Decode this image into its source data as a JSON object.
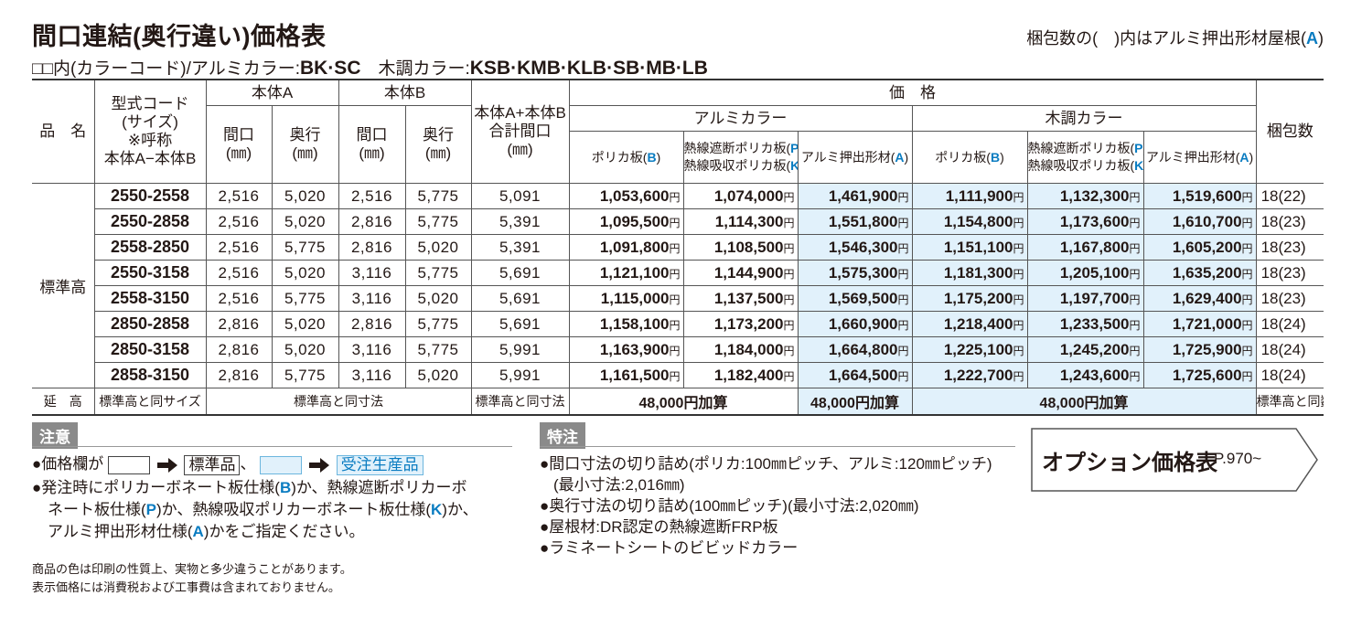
{
  "header": {
    "title": "間口連結(奥行違い)価格表",
    "pack_note": [
      "梱包数の(　)内はアルミ押出形材屋根(",
      "A",
      ")"
    ],
    "colors": [
      "□□内(カラーコード)/アルミカラー:",
      "BK·SC",
      "　木調カラー:",
      "KSB·KMB·KLB·SB·MB·LB"
    ]
  },
  "table": {
    "head": {
      "item": "品　名",
      "code": [
        "型式コード",
        "(サイズ)",
        "※呼称",
        "本体A−本体B"
      ],
      "body_a": {
        "label": "本体A",
        "width": [
          "間口",
          "(㎜)"
        ],
        "depth": [
          "奥行",
          "(㎜)"
        ]
      },
      "body_b": {
        "label": "本体B",
        "width": [
          "間口",
          "(㎜)"
        ],
        "depth": [
          "奥行",
          "(㎜)"
        ]
      },
      "total": [
        "本体A+本体B",
        "合計間口",
        "(㎜)"
      ],
      "price": "価　格",
      "alu": {
        "label": "アルミカラー",
        "cols": [
          [
            "ポリカ板(",
            "B",
            ")"
          ],
          [
            [
              "熱線遮断ポリカ板(",
              "P",
              ")"
            ],
            [
              "熱線吸収ポリカ板(",
              "K",
              ")"
            ]
          ],
          [
            "アルミ押出形材(",
            "A",
            ")"
          ]
        ]
      },
      "wood": {
        "label": "木調カラー",
        "cols": [
          [
            "ポリカ板(",
            "B",
            ")"
          ],
          [
            [
              "熱線遮断ポリカ板(",
              "P",
              ")"
            ],
            [
              "熱線吸収ポリカ板(",
              "K",
              ")"
            ]
          ],
          [
            "アルミ押出形材(",
            "A",
            ")"
          ]
        ]
      },
      "pack": "梱包数"
    },
    "group": "標準高",
    "rows": [
      [
        "2550-2558",
        "2,516",
        "5,020",
        "2,516",
        "5,775",
        "5,091",
        "1,053,600円",
        "1,074,000円",
        "1,461,900円",
        "1,111,900円",
        "1,132,300円",
        "1,519,600円",
        "18(22)"
      ],
      [
        "2550-2858",
        "2,516",
        "5,020",
        "2,816",
        "5,775",
        "5,391",
        "1,095,500円",
        "1,114,300円",
        "1,551,800円",
        "1,154,800円",
        "1,173,600円",
        "1,610,700円",
        "18(23)"
      ],
      [
        "2558-2850",
        "2,516",
        "5,775",
        "2,816",
        "5,020",
        "5,391",
        "1,091,800円",
        "1,108,500円",
        "1,546,300円",
        "1,151,100円",
        "1,167,800円",
        "1,605,200円",
        "18(23)"
      ],
      [
        "2550-3158",
        "2,516",
        "5,020",
        "3,116",
        "5,775",
        "5,691",
        "1,121,100円",
        "1,144,900円",
        "1,575,300円",
        "1,181,300円",
        "1,205,100円",
        "1,635,200円",
        "18(23)"
      ],
      [
        "2558-3150",
        "2,516",
        "5,775",
        "3,116",
        "5,020",
        "5,691",
        "1,115,000円",
        "1,137,500円",
        "1,569,500円",
        "1,175,200円",
        "1,197,700円",
        "1,629,400円",
        "18(23)"
      ],
      [
        "2850-2858",
        "2,816",
        "5,020",
        "2,816",
        "5,775",
        "5,691",
        "1,158,100円",
        "1,173,200円",
        "1,660,900円",
        "1,218,400円",
        "1,233,500円",
        "1,721,000円",
        "18(24)"
      ],
      [
        "2850-3158",
        "2,816",
        "5,020",
        "3,116",
        "5,775",
        "5,991",
        "1,163,900円",
        "1,184,000円",
        "1,664,800円",
        "1,225,100円",
        "1,245,200円",
        "1,725,900円",
        "18(24)"
      ],
      [
        "2858-3150",
        "2,816",
        "5,775",
        "3,116",
        "5,020",
        "5,991",
        "1,161,500円",
        "1,182,400円",
        "1,664,500円",
        "1,222,700円",
        "1,243,600円",
        "1,725,600円",
        "18(24)"
      ]
    ],
    "extra_row": {
      "label": "延　高",
      "code": "標準高と同サイズ",
      "dims": "標準高と同寸法",
      "total": "標準高と同寸法",
      "alu_bp": "48,000円加算",
      "alu_a": "48,000円加算",
      "wood": "48,000円加算",
      "pack": "標準高と同数"
    }
  },
  "caution": {
    "label": "注意",
    "legend": {
      "prefix": "●価格欄が",
      "standard": "標準品",
      "sep": "、",
      "order": "受注生産品"
    },
    "instruction": [
      [
        "●発注時にポリカーボネート板仕様(",
        "B",
        ")か、熱線遮断ポリカーボ"
      ],
      [
        "ネート板仕様(",
        "P",
        ")か、熱線吸収ポリカーボネート板仕様(",
        "K",
        ")か、"
      ],
      [
        "アルミ押出形材仕様(",
        "A",
        ")かをご指定ください。"
      ]
    ]
  },
  "fine_print": [
    "商品の色は印刷の性質上、実物と多少違うことがあります。",
    "表示価格には消費税および工事費は含まれておりません。"
  ],
  "special": {
    "label": "特注",
    "items": [
      "●間口寸法の切り詰め(ポリカ:100㎜ピッチ、アルミ:120㎜ピッチ)",
      "(最小寸法:2,016㎜)",
      "●奥行寸法の切り詰め(100㎜ピッチ)(最小寸法:2,020㎜)",
      "●屋根材:DR認定の熱線遮断FRP板",
      "●ラミネートシートのビビッドカラー"
    ]
  },
  "option": {
    "label": "オプション価格表",
    "page": "P.970~"
  }
}
